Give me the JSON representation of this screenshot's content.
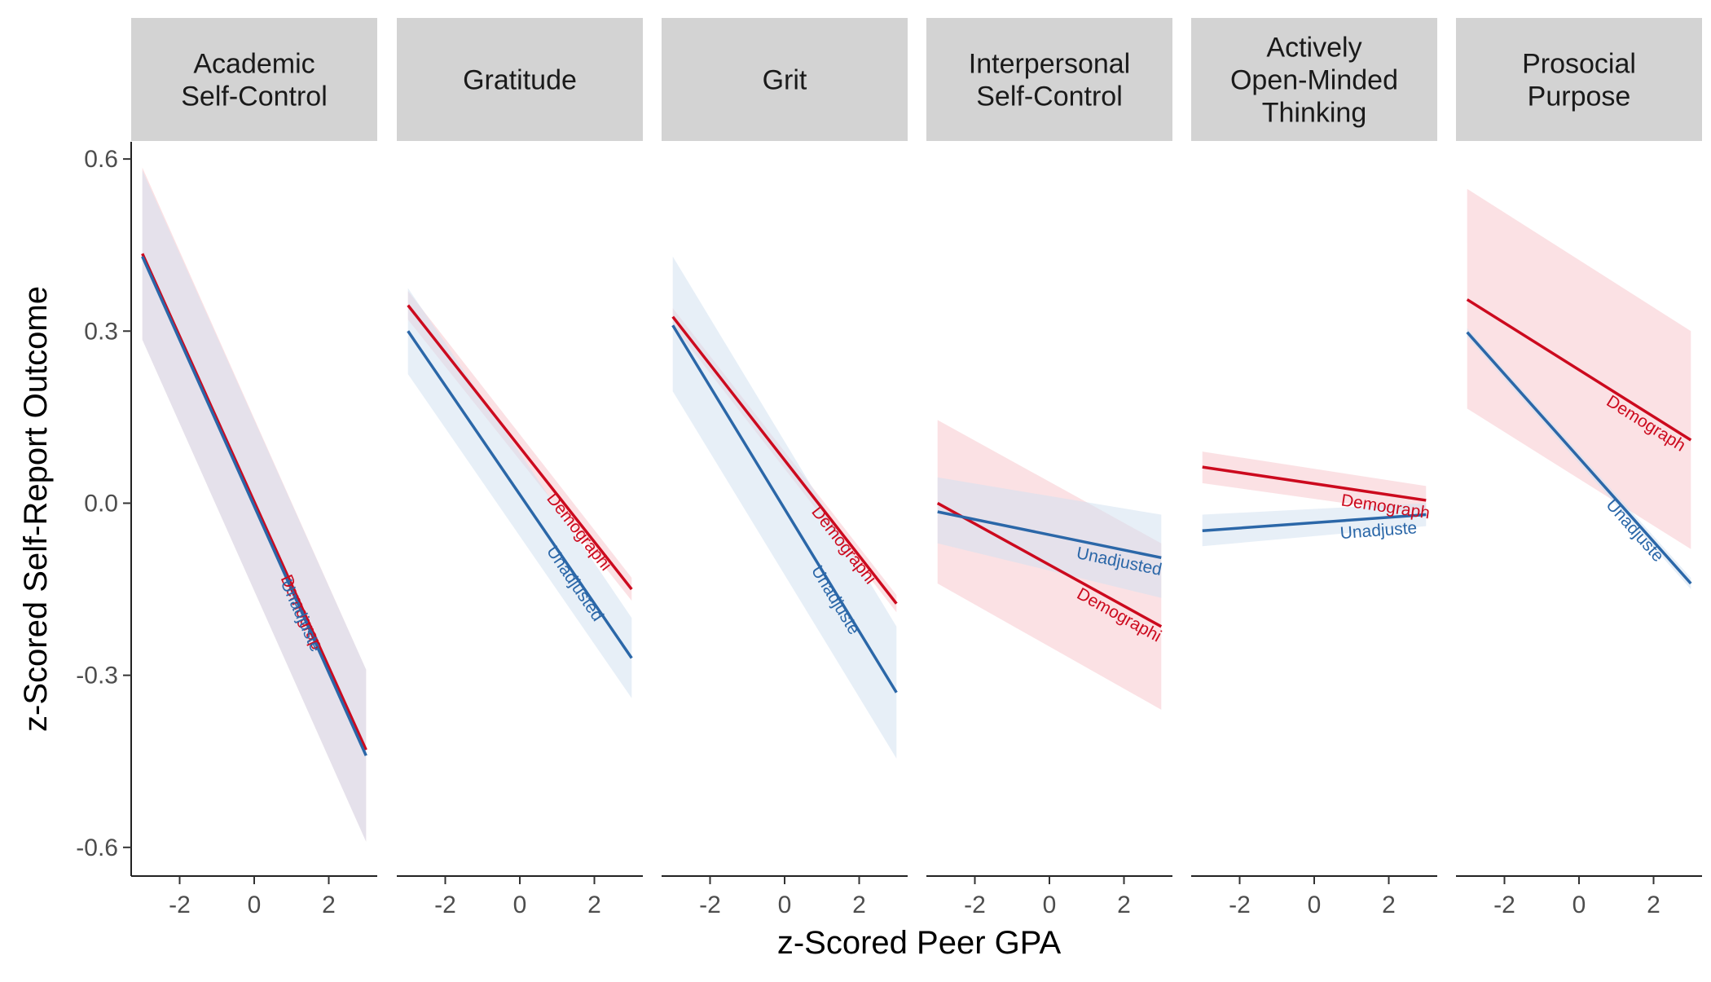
{
  "chart_data": {
    "type": "line",
    "xlabel": "z-Scored Peer GPA",
    "ylabel": "z-Scored Self-Report Outcome",
    "xlim": [
      -3.3,
      3.3
    ],
    "ylim": [
      -0.65,
      0.63
    ],
    "x_ticks": [
      -2,
      0,
      2
    ],
    "x_tick_labels": [
      "-2",
      "0",
      "2"
    ],
    "y_ticks": [
      -0.6,
      -0.3,
      0.0,
      0.3,
      0.6
    ],
    "y_tick_labels": [
      "-0.6",
      "-0.3",
      "0.0",
      "0.3",
      "0.6"
    ],
    "grid": false,
    "legend": "none (direct labels at line ends)",
    "series_styles": [
      {
        "name": "Demographics",
        "color": "#CC0A1E",
        "fill": "#F8C8CE"
      },
      {
        "name": "Unadjusted",
        "color": "#2B67A8",
        "fill": "#D4E2F0"
      }
    ],
    "panels": [
      {
        "title": "Academic\nSelf-Control",
        "series": [
          {
            "name": "Demographics",
            "label_text": "Demograp",
            "x": [
              -3,
              3
            ],
            "y": [
              0.435,
              -0.43
            ],
            "ci_lower": [
              0.285,
              -0.59
            ],
            "ci_upper": [
              0.585,
              -0.29
            ]
          },
          {
            "name": "Unadjusted",
            "label_text": "Unadjuste",
            "x": [
              -3,
              3
            ],
            "y": [
              0.43,
              -0.44
            ],
            "ci_lower": [
              0.285,
              -0.59
            ],
            "ci_upper": [
              0.58,
              -0.29
            ]
          }
        ]
      },
      {
        "title": "Gratitude",
        "series": [
          {
            "name": "Demographics",
            "label_text": "Demographi",
            "x": [
              -3,
              3
            ],
            "y": [
              0.345,
              -0.15
            ],
            "ci_lower": [
              0.32,
              -0.17
            ],
            "ci_upper": [
              0.37,
              -0.13
            ]
          },
          {
            "name": "Unadjusted",
            "label_text": "Unadjusted",
            "x": [
              -3,
              3
            ],
            "y": [
              0.3,
              -0.27
            ],
            "ci_lower": [
              0.225,
              -0.34
            ],
            "ci_upper": [
              0.375,
              -0.2
            ]
          }
        ]
      },
      {
        "title": "Grit",
        "series": [
          {
            "name": "Demographics",
            "label_text": "Demographi",
            "x": [
              -3,
              3
            ],
            "y": [
              0.325,
              -0.175
            ],
            "ci_lower": [
              0.31,
              -0.19
            ],
            "ci_upper": [
              0.34,
              -0.16
            ]
          },
          {
            "name": "Unadjusted",
            "label_text": "Unadjuste",
            "x": [
              -3,
              3
            ],
            "y": [
              0.31,
              -0.33
            ],
            "ci_lower": [
              0.195,
              -0.445
            ],
            "ci_upper": [
              0.43,
              -0.215
            ]
          }
        ]
      },
      {
        "title": "Interpersonal\nSelf-Control",
        "series": [
          {
            "name": "Demographics",
            "label_text": "Demographi",
            "x": [
              -3,
              3
            ],
            "y": [
              0.0,
              -0.215
            ],
            "ci_lower": [
              -0.14,
              -0.36
            ],
            "ci_upper": [
              0.145,
              -0.07
            ]
          },
          {
            "name": "Unadjusted",
            "label_text": "Unadjusted",
            "x": [
              -3,
              3
            ],
            "y": [
              -0.015,
              -0.095
            ],
            "ci_lower": [
              -0.07,
              -0.165
            ],
            "ci_upper": [
              0.045,
              -0.02
            ]
          }
        ]
      },
      {
        "title": "Actively\nOpen-Minded\nThinking",
        "series": [
          {
            "name": "Demographics",
            "label_text": "Demograph",
            "x": [
              -3,
              3
            ],
            "y": [
              0.063,
              0.005
            ],
            "ci_lower": [
              0.035,
              -0.02
            ],
            "ci_upper": [
              0.09,
              0.03
            ]
          },
          {
            "name": "Unadjusted",
            "label_text": "Unadjuste",
            "x": [
              -3,
              3
            ],
            "y": [
              -0.048,
              -0.02
            ],
            "ci_lower": [
              -0.075,
              -0.04
            ],
            "ci_upper": [
              -0.02,
              0.0
            ]
          }
        ]
      },
      {
        "title": "Prosocial\nPurpose",
        "series": [
          {
            "name": "Demographics",
            "label_text": "Demograph",
            "x": [
              -3,
              3
            ],
            "y": [
              0.355,
              0.11
            ],
            "ci_lower": [
              0.165,
              -0.08
            ],
            "ci_upper": [
              0.548,
              0.3
            ]
          },
          {
            "name": "Unadjusted",
            "label_text": "Unadjuste",
            "x": [
              -3,
              3
            ],
            "y": [
              0.298,
              -0.14
            ],
            "ci_lower": [
              0.29,
              -0.15
            ],
            "ci_upper": [
              0.305,
              -0.13
            ]
          }
        ]
      }
    ]
  }
}
